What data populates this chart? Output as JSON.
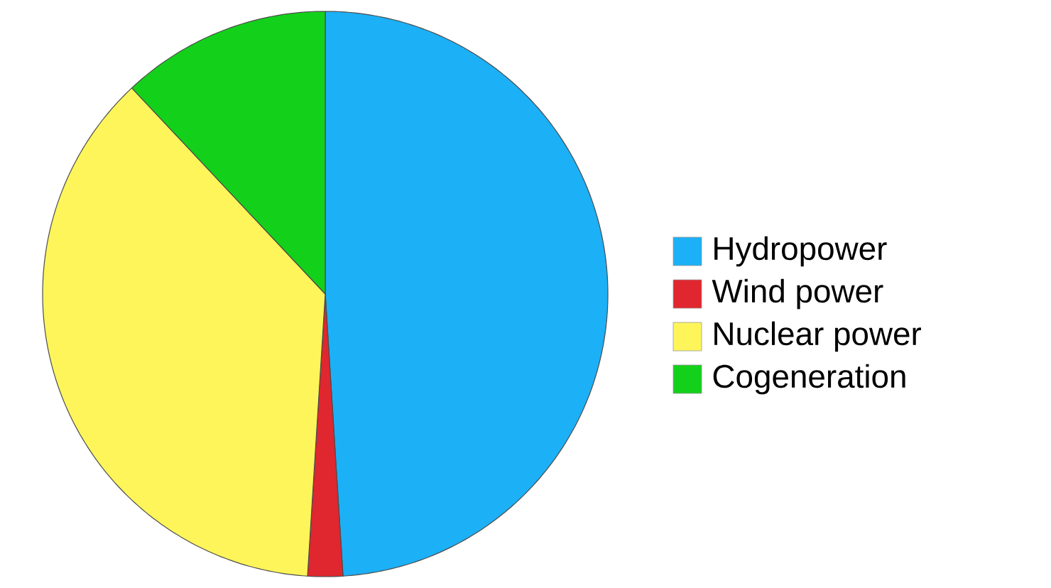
{
  "chart_data": {
    "type": "pie",
    "categories": [
      "Hydropower",
      "Wind power",
      "Nuclear power",
      "Cogeneration"
    ],
    "values": [
      49,
      2,
      37,
      12
    ],
    "colors": [
      "#1cb0f6",
      "#e0262e",
      "#fdf55a",
      "#13d11a"
    ],
    "legend": "right"
  }
}
